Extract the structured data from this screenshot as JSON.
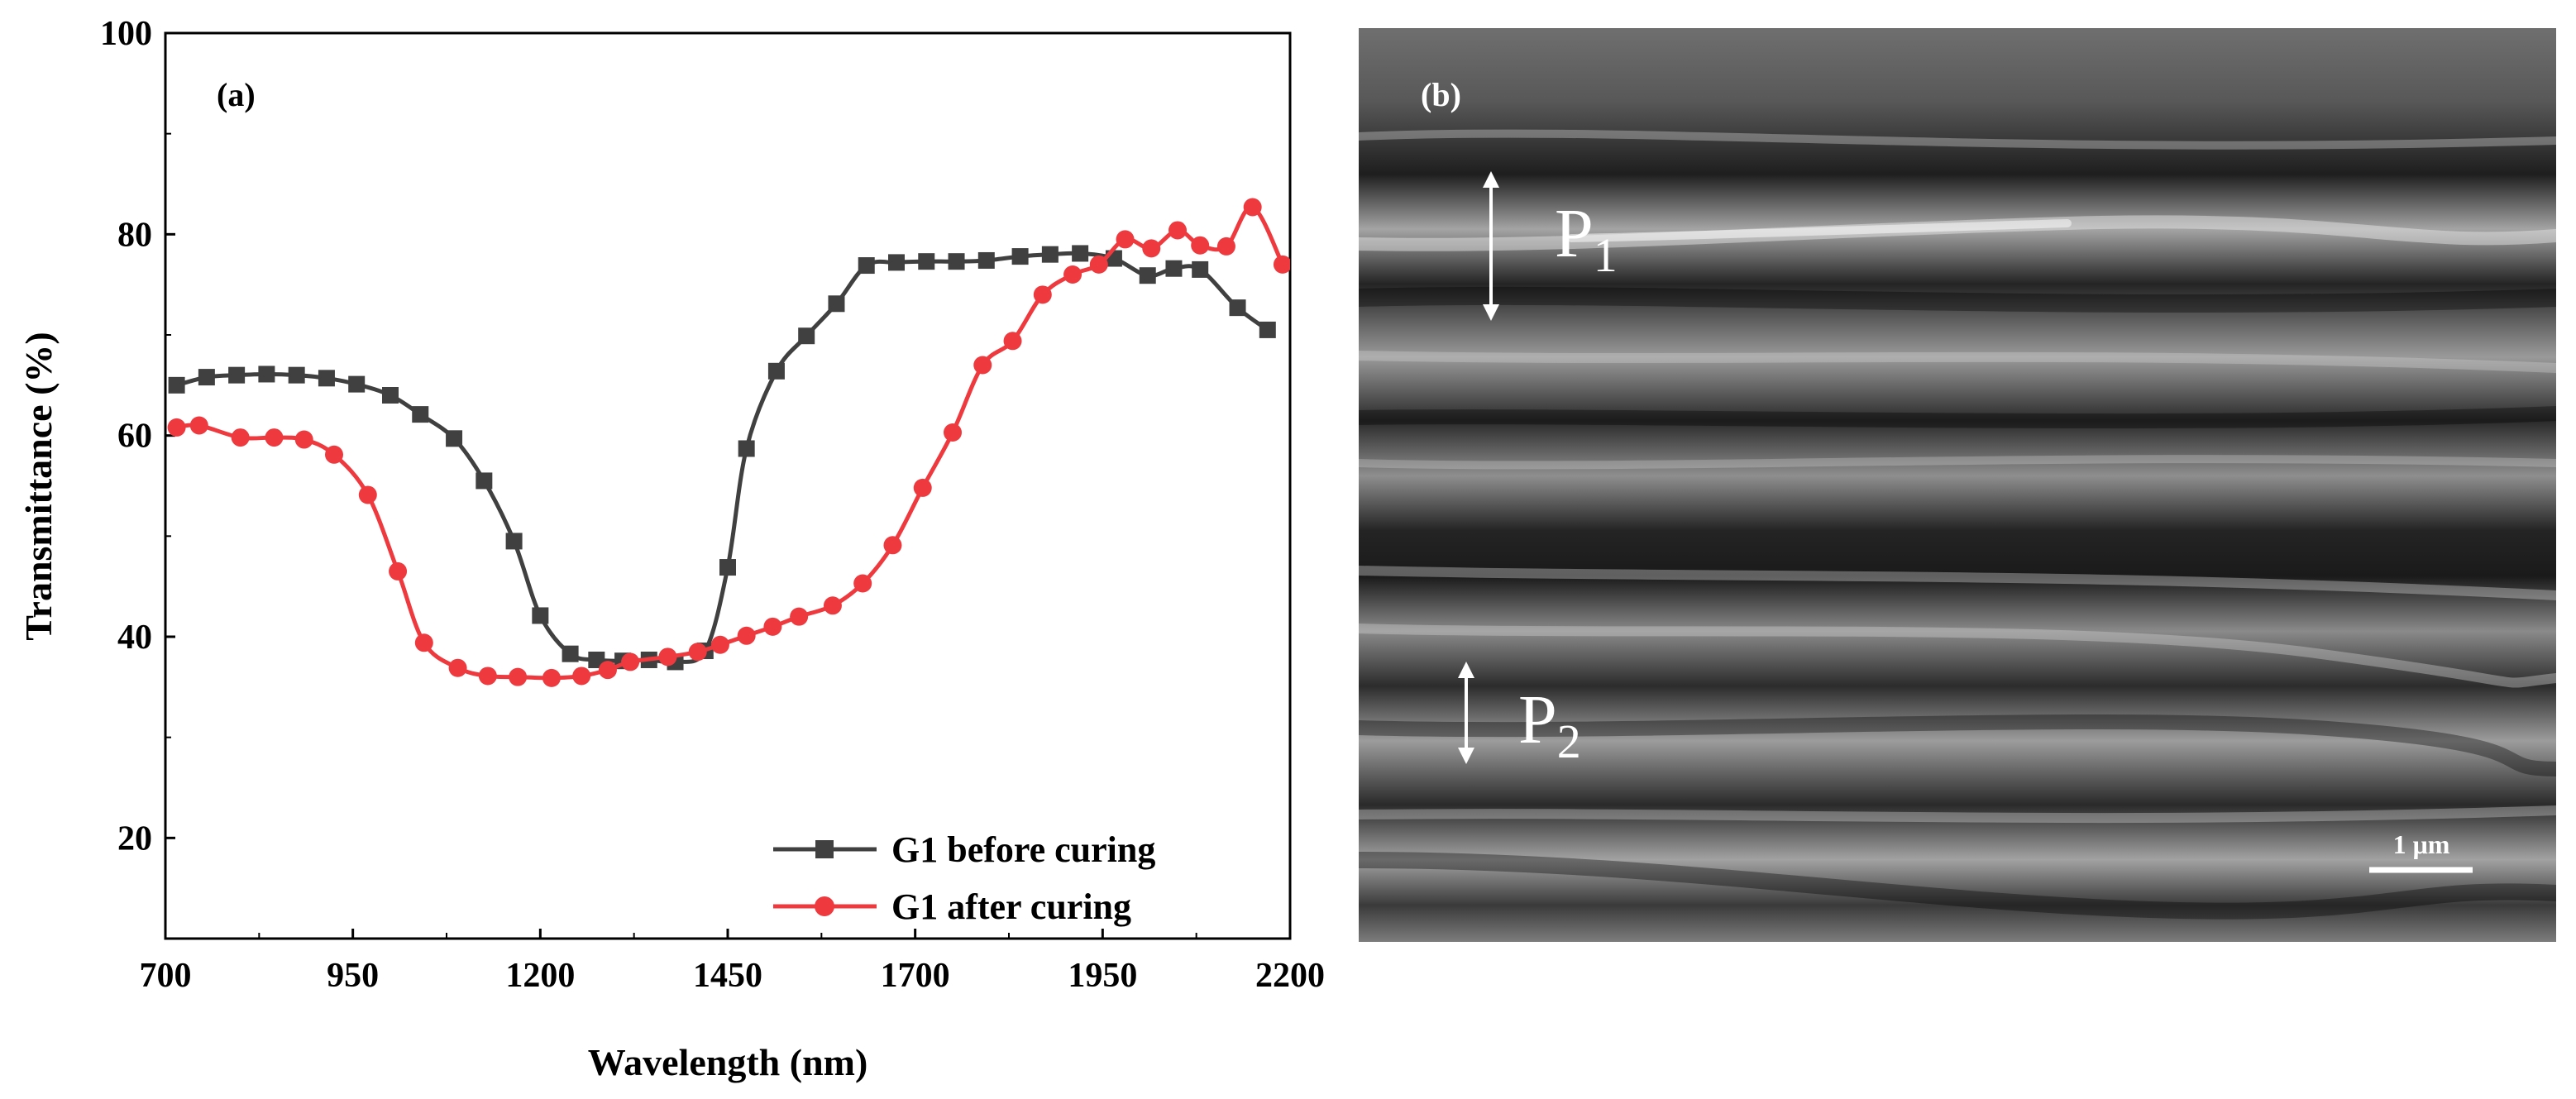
{
  "chart_data": {
    "type": "line",
    "panel_label": "(a)",
    "xlabel": "Wavelength (nm)",
    "ylabel": "Transmittance (%)",
    "xlim": [
      700,
      2200
    ],
    "ylim": [
      10,
      100
    ],
    "xticks": [
      700,
      950,
      1200,
      1450,
      1700,
      1950,
      2200
    ],
    "xtick_labels": [
      "700",
      "950",
      "1200",
      "1450",
      "1700",
      "1950",
      "2200"
    ],
    "yticks": [
      20,
      40,
      60,
      80,
      100
    ],
    "ytick_labels": [
      "20",
      "40",
      "60",
      "80",
      "100"
    ],
    "legend_position": "bottom-right",
    "series": [
      {
        "name": "G1 before curing",
        "color": "#404040",
        "marker": "square",
        "x": [
          715,
          755,
          795,
          835,
          875,
          915,
          955,
          1000,
          1040,
          1085,
          1125,
          1165,
          1200,
          1240,
          1275,
          1310,
          1345,
          1380,
          1420,
          1450,
          1475,
          1515,
          1555,
          1595,
          1635,
          1675,
          1715,
          1755,
          1795,
          1840,
          1880,
          1920,
          1965,
          2010,
          2045,
          2080,
          2130,
          2170
        ],
        "y": [
          65.0,
          65.8,
          66.0,
          66.1,
          66.0,
          65.7,
          65.1,
          64.0,
          62.1,
          59.7,
          55.5,
          49.5,
          42.1,
          38.3,
          37.7,
          37.6,
          37.7,
          37.5,
          38.6,
          46.9,
          58.7,
          66.4,
          69.9,
          73.1,
          76.9,
          77.2,
          77.3,
          77.3,
          77.4,
          77.8,
          78.0,
          78.1,
          77.6,
          75.9,
          76.6,
          76.5,
          72.7,
          70.5
        ]
      },
      {
        "name": "G1 after curing",
        "color": "#ee3a3e",
        "marker": "circle",
        "x": [
          715,
          745,
          800,
          845,
          885,
          925,
          970,
          1010,
          1045,
          1090,
          1130,
          1170,
          1215,
          1255,
          1290,
          1320,
          1370,
          1410,
          1440,
          1475,
          1510,
          1545,
          1590,
          1630,
          1670,
          1710,
          1750,
          1790,
          1830,
          1870,
          1910,
          1945,
          1980,
          2015,
          2050,
          2080,
          2115,
          2150,
          2190
        ],
        "y": [
          60.8,
          61.0,
          59.8,
          59.8,
          59.6,
          58.1,
          54.1,
          46.5,
          39.4,
          36.9,
          36.1,
          36.0,
          35.9,
          36.1,
          36.7,
          37.5,
          38.0,
          38.5,
          39.2,
          40.1,
          41.0,
          42.0,
          43.1,
          45.3,
          49.1,
          54.8,
          60.3,
          67.0,
          69.4,
          74.0,
          76.0,
          77.0,
          79.5,
          78.6,
          80.4,
          78.9,
          78.8,
          82.7,
          77.0
        ]
      }
    ]
  },
  "micrograph": {
    "panel_label": "(b)",
    "p1_label": "P",
    "p1_sub": "1",
    "p2_label": "P",
    "p2_sub": "2",
    "scale_bar_label": "1 μm"
  }
}
